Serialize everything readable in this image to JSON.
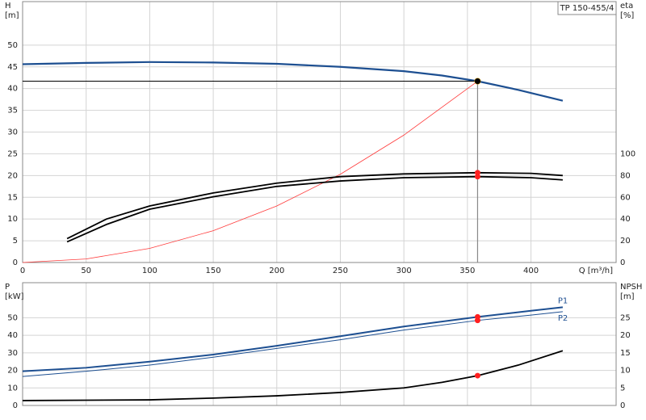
{
  "chart_data": [
    {
      "type": "line",
      "title": "TP 150-455/4",
      "ylabel": "H",
      "yunit": "[m]",
      "y2label": "eta",
      "y2unit": "[%]",
      "xlabel": "Q [m³/h]",
      "xlim": [
        0,
        467
      ],
      "xticks": [
        0,
        50,
        100,
        150,
        200,
        250,
        300,
        350,
        400
      ],
      "ylim": [
        0,
        60
      ],
      "yticks": [
        0,
        5,
        10,
        15,
        20,
        25,
        30,
        35,
        40,
        45,
        50
      ],
      "y2lim": [
        0,
        240
      ],
      "y2ticks": [
        0,
        20,
        40,
        60,
        80,
        100
      ],
      "grid": true,
      "duty_x": 358,
      "series": [
        {
          "color": "#1d4f91",
          "width": 2.2,
          "marker_color": "#f5c400",
          "x": [
            0,
            50,
            100,
            150,
            200,
            250,
            300,
            330,
            358,
            390,
            425
          ],
          "values": [
            45.6,
            45.9,
            46.1,
            46.0,
            45.7,
            45.0,
            44.0,
            43.0,
            41.7,
            39.7,
            37.2
          ]
        },
        {
          "color": "#ff3b3b",
          "width": 0.8,
          "x": [
            0,
            50,
            100,
            150,
            200,
            250,
            300,
            358
          ],
          "values": [
            0,
            0.81,
            3.25,
            7.32,
            13.0,
            20.3,
            29.3,
            41.7
          ]
        },
        {
          "color": "#000000",
          "width": 1.8,
          "axis": "y2",
          "marker_color": "#ff2020",
          "x": [
            35,
            66,
            100,
            150,
            200,
            250,
            300,
            358,
            400,
            425
          ],
          "values": [
            22,
            40,
            52,
            64,
            73,
            79,
            81.5,
            82.6,
            82,
            80
          ]
        },
        {
          "color": "#000000",
          "width": 1.8,
          "axis": "y2",
          "marker_color": "#ff2020",
          "x": [
            35,
            66,
            100,
            150,
            200,
            250,
            300,
            358,
            400,
            425
          ],
          "values": [
            19,
            35,
            49,
            60.5,
            70,
            75,
            78,
            79,
            78,
            76
          ]
        }
      ]
    },
    {
      "type": "line",
      "ylabel": "P",
      "yunit": "[kW]",
      "y2label": "NPSH",
      "y2unit": "[m]",
      "xlim": [
        0,
        467
      ],
      "xticks": [
        0,
        50,
        100,
        150,
        200,
        250,
        300,
        350,
        400
      ],
      "ylim": [
        0,
        70
      ],
      "yticks": [
        0,
        10,
        20,
        30,
        40,
        50
      ],
      "y2lim": [
        0,
        35
      ],
      "y2ticks": [
        0,
        5,
        10,
        15,
        20,
        25
      ],
      "grid": true,
      "duty_x": 358,
      "series": [
        {
          "name": "P1",
          "color": "#1d4f91",
          "width": 2,
          "marker_color": "#ff2020",
          "x": [
            0,
            50,
            100,
            150,
            200,
            250,
            300,
            358,
            400,
            425
          ],
          "values": [
            19.5,
            21.5,
            25,
            29,
            34,
            39.5,
            45,
            50.5,
            54,
            56
          ]
        },
        {
          "name": "P2",
          "color": "#1d4f91",
          "width": 1,
          "marker_color": "#ff2020",
          "x": [
            0,
            50,
            100,
            150,
            200,
            250,
            300,
            358,
            400,
            425
          ],
          "values": [
            16.5,
            19.5,
            23,
            27.5,
            32.5,
            37.5,
            43,
            48.5,
            51.5,
            53.5
          ]
        },
        {
          "color": "#000000",
          "width": 1.8,
          "axis": "y2",
          "marker_color": "#ff2020",
          "x": [
            0,
            50,
            100,
            150,
            200,
            250,
            300,
            330,
            358,
            390,
            425
          ],
          "values": [
            1.4,
            1.5,
            1.6,
            2.1,
            2.75,
            3.7,
            5,
            6.6,
            8.5,
            11.5,
            15.6
          ]
        }
      ]
    }
  ]
}
